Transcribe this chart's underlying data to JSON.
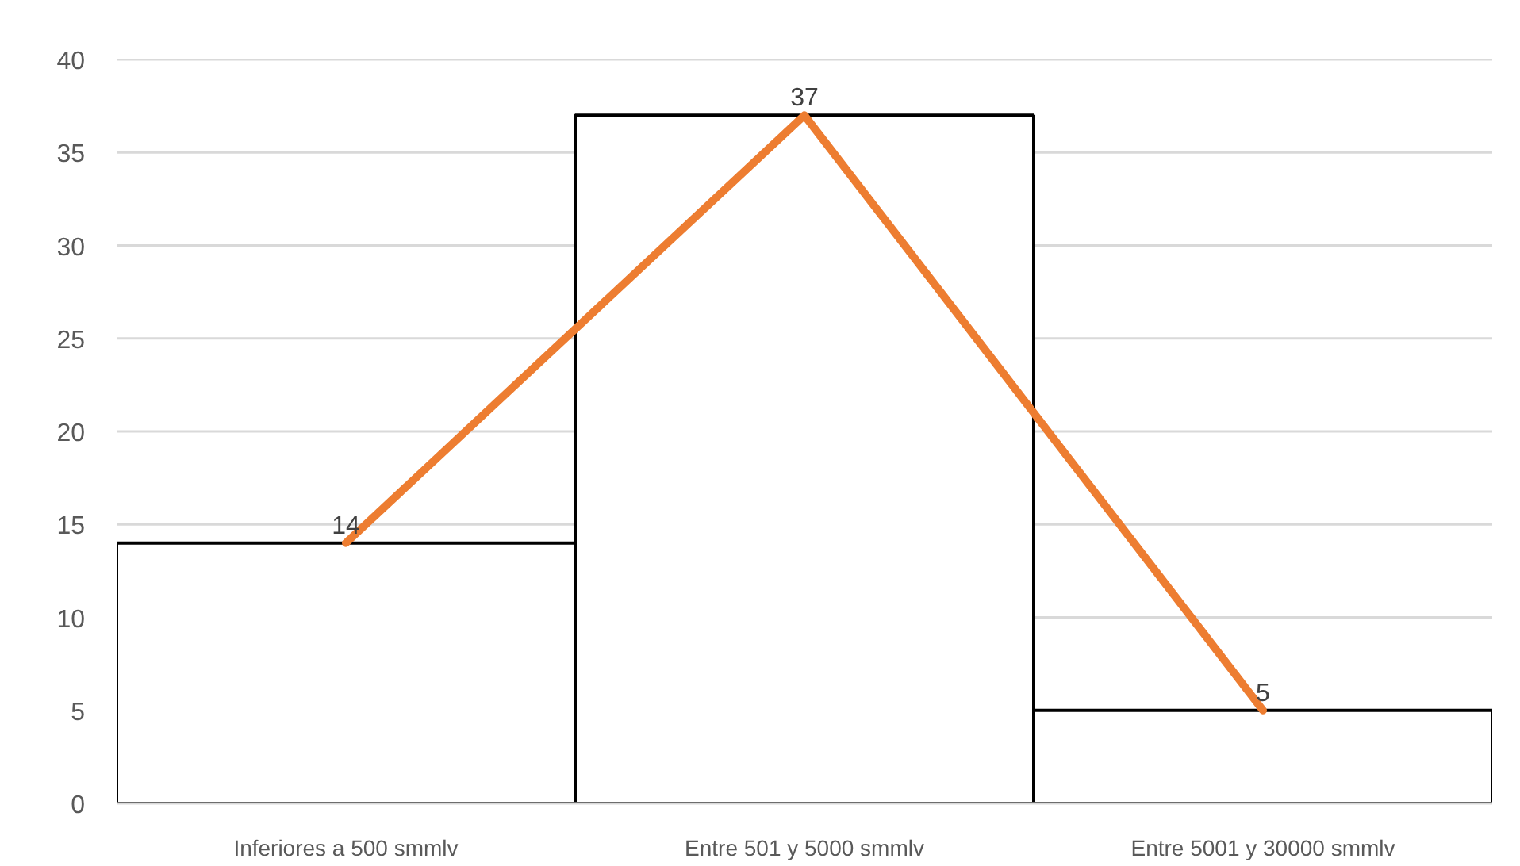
{
  "chart_data": {
    "type": "bar",
    "categories": [
      "Inferiores a 500 smmlv",
      "Entre 501 y 5000 smmlv",
      "Entre 5001 y 30000 smmlv"
    ],
    "series": [
      {
        "color": "#ffffff",
        "values": [
          14,
          37,
          5
        ],
        "value_labels": [
          "14",
          "37",
          "5"
        ]
      },
      {
        "type": "line",
        "color": "#ed7d31",
        "values": [
          14,
          37,
          5
        ]
      }
    ],
    "ylim": [
      0,
      40
    ],
    "yticks": [
      0,
      5,
      10,
      15,
      20,
      25,
      30,
      35,
      40
    ],
    "grid": "y"
  }
}
